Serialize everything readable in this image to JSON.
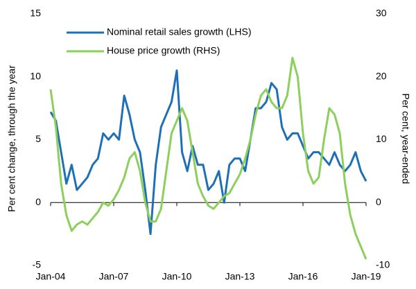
{
  "chart_data": {
    "type": "line",
    "y_label": "Per cent change, through the year",
    "y2_label": "Per cent, year-ended",
    "x": [
      2004,
      2004.25,
      2004.5,
      2004.75,
      2005,
      2005.25,
      2005.5,
      2005.75,
      2006,
      2006.25,
      2006.5,
      2006.75,
      2007,
      2007.25,
      2007.5,
      2007.75,
      2008,
      2008.25,
      2008.5,
      2008.75,
      2009,
      2009.25,
      2009.5,
      2009.75,
      2010,
      2010.25,
      2010.5,
      2010.75,
      2011,
      2011.25,
      2011.5,
      2011.75,
      2012,
      2012.25,
      2012.5,
      2012.75,
      2013,
      2013.25,
      2013.5,
      2013.75,
      2014,
      2014.25,
      2014.5,
      2014.75,
      2015,
      2015.25,
      2015.5,
      2015.75,
      2016,
      2016.25,
      2016.5,
      2016.75,
      2017,
      2017.25,
      2017.5,
      2017.75,
      2018,
      2018.25,
      2018.5,
      2018.75,
      2019
    ],
    "series": [
      {
        "name": "Nominal retail sales growth (LHS)",
        "color": "#1f6fb6",
        "axis": "y",
        "values": [
          7.2,
          6.5,
          4.0,
          1.5,
          3.0,
          1.0,
          1.5,
          2.0,
          3.0,
          3.5,
          5.5,
          5.0,
          5.5,
          5.0,
          8.5,
          7.0,
          5.0,
          4.0,
          1.0,
          -2.5,
          3.0,
          6.0,
          7.0,
          8.0,
          10.5,
          4.0,
          2.5,
          4.5,
          3.0,
          3.0,
          1.0,
          1.5,
          2.5,
          0,
          3.0,
          3.5,
          3.5,
          2.5,
          5.0,
          7.5,
          7.5,
          8.0,
          9.5,
          9.0,
          6.0,
          5.0,
          5.5,
          5.5,
          4.5,
          3.5,
          4.0,
          4.0,
          3.5,
          3.0,
          4.0,
          3.0,
          2.5,
          3.0,
          4.0,
          2.5,
          1.7
        ]
      },
      {
        "name": "House price growth (RHS)",
        "color": "#8ccf5a",
        "axis": "y2",
        "values": [
          18,
          12,
          3,
          -2,
          -4.5,
          -3.5,
          -3,
          -3.5,
          -2.5,
          -1.5,
          0,
          -0.5,
          0.5,
          2,
          4,
          7,
          8,
          5,
          0,
          -3,
          -3,
          -1,
          5,
          11,
          13,
          15,
          13,
          8,
          3,
          1,
          -0.5,
          -1,
          0,
          1,
          1.5,
          3,
          4.5,
          7,
          10,
          14,
          17,
          18,
          16,
          15,
          15,
          17,
          23,
          20,
          11,
          5,
          3,
          4,
          10,
          15,
          14,
          11,
          3,
          -2,
          -5,
          -7,
          -9
        ]
      }
    ],
    "xlim": [
      2004,
      2019
    ],
    "xticks": [
      {
        "value": 2004,
        "label": "Jan-04"
      },
      {
        "value": 2007,
        "label": "Jan-07"
      },
      {
        "value": 2010,
        "label": "Jan-10"
      },
      {
        "value": 2013,
        "label": "Jan-13"
      },
      {
        "value": 2016,
        "label": "Jan-16"
      },
      {
        "value": 2019,
        "label": "Jan-19"
      }
    ],
    "ylim": [
      -5,
      15
    ],
    "yticks": [
      -5,
      0,
      5,
      10,
      15
    ],
    "y2lim": [
      -10,
      30
    ],
    "y2ticks": [
      -10,
      0,
      10,
      20,
      30
    ],
    "legend": "upper left"
  }
}
